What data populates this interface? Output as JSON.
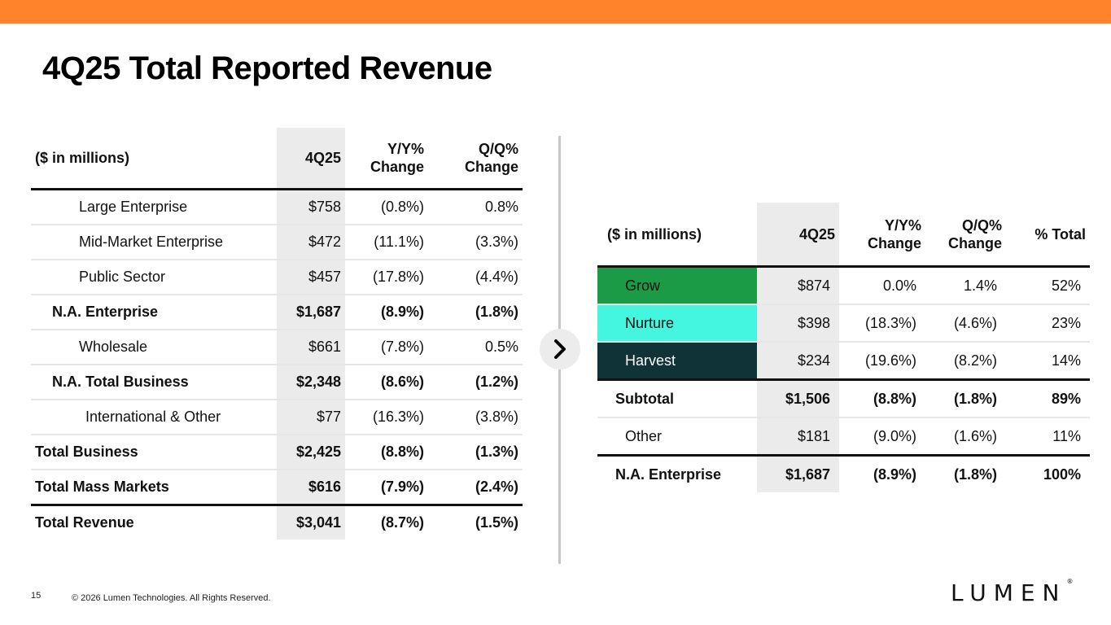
{
  "title": "4Q25 Total Reported Revenue",
  "colors": {
    "accent": "#ff832b",
    "grow": "#1b9b45",
    "nurture": "#44f5e0",
    "harvest": "#0f3337"
  },
  "left_table": {
    "headers": [
      "($ in millions)",
      "4Q25",
      "Y/Y%\nChange",
      "Q/Q%\nChange"
    ],
    "rows": [
      {
        "label": "Large Enterprise",
        "q": "$758",
        "yy": "(0.8%)",
        "qq": "0.8%"
      },
      {
        "label": "Mid-Market Enterprise",
        "q": "$472",
        "yy": "(11.1%)",
        "qq": "(3.3%)"
      },
      {
        "label": "Public Sector",
        "q": "$457",
        "yy": "(17.8%)",
        "qq": "(4.4%)"
      },
      {
        "label": "N.A. Enterprise",
        "q": "$1,687",
        "yy": "(8.9%)",
        "qq": "(1.8%)"
      },
      {
        "label": "Wholesale",
        "q": "$661",
        "yy": "(7.8%)",
        "qq": "0.5%"
      },
      {
        "label": "N.A. Total Business",
        "q": "$2,348",
        "yy": "(8.6%)",
        "qq": "(1.2%)"
      },
      {
        "label": "International & Other",
        "q": "$77",
        "yy": "(16.3%)",
        "qq": "(3.8%)"
      },
      {
        "label": "Total Business",
        "q": "$2,425",
        "yy": "(8.8%)",
        "qq": "(1.3%)"
      },
      {
        "label": "Total Mass Markets",
        "q": "$616",
        "yy": "(7.9%)",
        "qq": "(2.4%)"
      },
      {
        "label": "Total Revenue",
        "q": "$3,041",
        "yy": "(8.7%)",
        "qq": "(1.5%)"
      }
    ]
  },
  "right_table": {
    "headers": [
      "($ in millions)",
      "4Q25",
      "Y/Y%\nChange",
      "Q/Q%\nChange",
      "% Total"
    ],
    "rows": [
      {
        "label": "Grow",
        "q": "$874",
        "yy": "0.0%",
        "qq": "1.4%",
        "pct": "52%"
      },
      {
        "label": "Nurture",
        "q": "$398",
        "yy": "(18.3%)",
        "qq": "(4.6%)",
        "pct": "23%"
      },
      {
        "label": "Harvest",
        "q": "$234",
        "yy": "(19.6%)",
        "qq": "(8.2%)",
        "pct": "14%"
      },
      {
        "label": "Subtotal",
        "q": "$1,506",
        "yy": "(8.8%)",
        "qq": "(1.8%)",
        "pct": "89%"
      },
      {
        "label": "Other",
        "q": "$181",
        "yy": "(9.0%)",
        "qq": "(1.6%)",
        "pct": "11%"
      },
      {
        "label": "N.A. Enterprise",
        "q": "$1,687",
        "yy": "(8.9%)",
        "qq": "(1.8%)",
        "pct": "100%"
      }
    ]
  },
  "footer": {
    "page_number": "15",
    "copyright": "© 2026 Lumen Technologies. All Rights Reserved."
  },
  "logo": {
    "text": "LUMEN",
    "mark": "®"
  }
}
